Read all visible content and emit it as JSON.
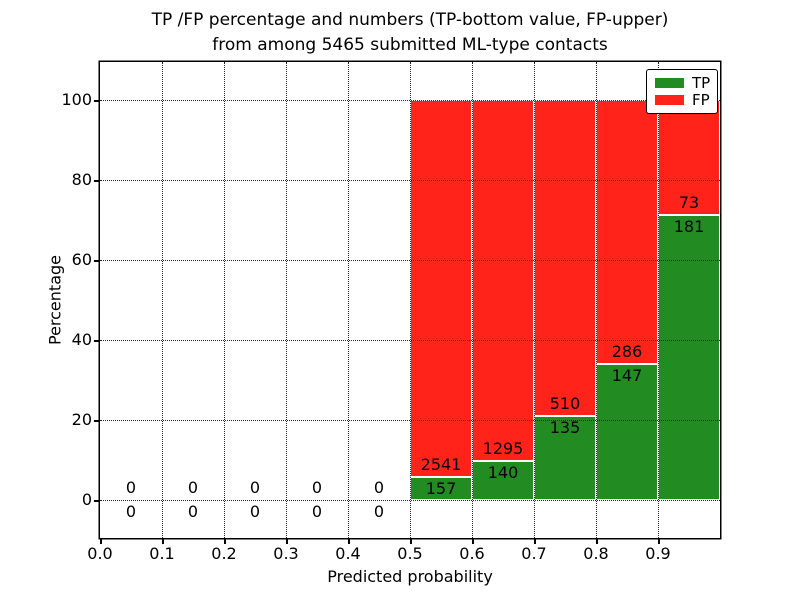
{
  "title": {
    "line1": "TP /FP percentage and numbers (TP-bottom value, FP-upper)",
    "line2": "from among 5465 submitted ML-type contacts"
  },
  "chart_data": {
    "type": "bar",
    "stacked": true,
    "title": "TP /FP percentage and numbers (TP-bottom value, FP-upper) from among 5465 submitted ML-type contacts",
    "xlabel": "Predicted probability",
    "ylabel": "Percentage",
    "xlim": [
      0.0,
      1.0
    ],
    "ylim": [
      -9.5,
      109.5
    ],
    "xticks": [
      "0.0",
      "0.1",
      "0.2",
      "0.3",
      "0.4",
      "0.5",
      "0.6",
      "0.7",
      "0.8",
      "0.9"
    ],
    "yticks": [
      "0",
      "20",
      "40",
      "60",
      "80",
      "100"
    ],
    "grid": "dotted",
    "legend_position": "upper right",
    "total_contacts": 5465,
    "bin_edges": [
      0.0,
      0.1,
      0.2,
      0.3,
      0.4,
      0.5,
      0.6,
      0.7,
      0.8,
      0.9,
      1.0
    ],
    "series": [
      {
        "name": "TP",
        "color": "#228b22",
        "counts": [
          0,
          0,
          0,
          0,
          0,
          157,
          140,
          135,
          147,
          181
        ]
      },
      {
        "name": "FP",
        "color": "#ff231a",
        "counts": [
          0,
          0,
          0,
          0,
          0,
          2541,
          1295,
          510,
          286,
          73
        ]
      }
    ]
  },
  "colors": {
    "tp_green": "#228b22",
    "fp_red": "#ff231a",
    "axis": "#000000",
    "background": "#ffffff"
  }
}
